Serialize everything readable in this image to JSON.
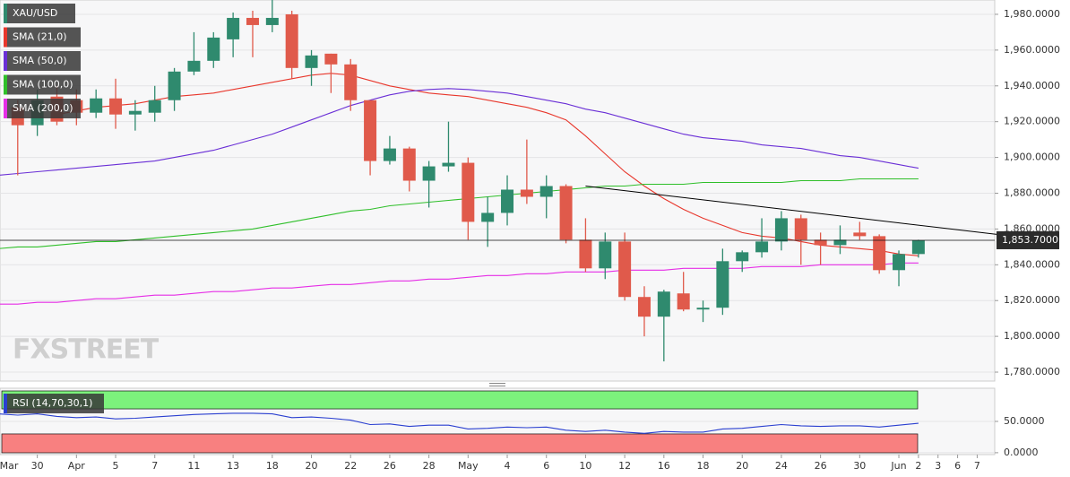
{
  "chart_data": [
    {
      "type": "candlestick",
      "instrument": "XAU/USD",
      "categories": [
        "Mar",
        null,
        "30",
        null,
        "Apr",
        null,
        "5",
        null,
        "7",
        null,
        "11",
        null,
        "13",
        null,
        "18",
        null,
        "20",
        null,
        "22",
        null,
        "26",
        null,
        "28",
        null,
        "May",
        null,
        "4",
        null,
        "6",
        null,
        "10",
        null,
        "12",
        null,
        "16",
        null,
        "18",
        null,
        "20",
        null,
        "24",
        null,
        "26",
        null,
        "30",
        null,
        "Jun",
        "2",
        "3",
        "6",
        "7"
      ],
      "open": [
        null,
        1928,
        1918,
        1934,
        1932,
        1925,
        1933,
        1924,
        1925,
        1932,
        1948,
        1954,
        1966,
        1978,
        1974,
        1980,
        1950,
        1958,
        1952,
        1932,
        1898,
        1905,
        1887,
        1895,
        1897,
        1864,
        1869,
        1882,
        1878,
        1884,
        1854,
        1838,
        1853,
        1822,
        1811,
        1824,
        1815,
        1816,
        1842,
        1847,
        1853,
        1866,
        1854,
        1851,
        1858,
        1856,
        1837,
        1846,
        null,
        null,
        null
      ],
      "high": [
        null,
        1932,
        1938,
        1940,
        1938,
        1938,
        1944,
        1932,
        1940,
        1950,
        1970,
        1970,
        1981,
        1982,
        1990,
        1982,
        1960,
        1958,
        1955,
        1932,
        1912,
        1906,
        1898,
        1920,
        1900,
        1878,
        1890,
        1910,
        1890,
        1885,
        1866,
        1858,
        1858,
        1828,
        1826,
        1836,
        1820,
        1849,
        1848,
        1866,
        1870,
        1868,
        1858,
        1862,
        1864,
        1857,
        1848,
        1854,
        null,
        null,
        null
      ],
      "low": [
        null,
        1890,
        1912,
        1918,
        1918,
        1922,
        1916,
        1915,
        1920,
        1926,
        1946,
        1950,
        1956,
        1956,
        1970,
        1944,
        1940,
        1936,
        1926,
        1890,
        1896,
        1881,
        1872,
        1892,
        1854,
        1850,
        1862,
        1874,
        1866,
        1852,
        1836,
        1832,
        1820,
        1800,
        1786,
        1814,
        1808,
        1812,
        1836,
        1844,
        1848,
        1840,
        1840,
        1846,
        1854,
        1835,
        1828,
        1844,
        null,
        null,
        null
      ],
      "close": [
        null,
        1918,
        1932,
        1920,
        1925,
        1933,
        1924,
        1926,
        1932,
        1948,
        1954,
        1967,
        1978,
        1974,
        1978,
        1950,
        1957,
        1952,
        1932,
        1898,
        1905,
        1887,
        1895,
        1897,
        1864,
        1869,
        1882,
        1878,
        1884,
        1854,
        1838,
        1853,
        1822,
        1811,
        1825,
        1815,
        1816,
        1842,
        1847,
        1853,
        1866,
        1854,
        1851,
        1854,
        1856,
        1837,
        1846,
        1853.7,
        null,
        null,
        null
      ],
      "up_color": "#2f8a6e",
      "down_color": "#e05a4b",
      "series": [
        {
          "name": "SMA (21,0)",
          "color": "#e8372c",
          "values": [
            null,
            null,
            null,
            1924,
            1926,
            1928,
            1929,
            1930,
            1932,
            1934,
            1935,
            1936,
            1938,
            1940,
            1942,
            1944,
            1946,
            1947,
            1946,
            1943,
            1940,
            1938,
            1936,
            1935,
            1934,
            1932,
            1930,
            1928,
            1925,
            1921,
            1912,
            1902,
            1892,
            1884,
            1877,
            1871,
            1866,
            1862,
            1858,
            1856,
            1855,
            1853,
            1851,
            1850,
            1849,
            1848,
            1846,
            1845,
            null,
            null,
            null
          ]
        },
        {
          "name": "SMA (50,0)",
          "color": "#6a2fd6",
          "values": [
            1890,
            1891,
            1892,
            1893,
            1894,
            1895,
            1896,
            1897,
            1898,
            1900,
            1902,
            1904,
            1907,
            1910,
            1913,
            1917,
            1921,
            1925,
            1929,
            1932,
            1935,
            1937,
            1938,
            1938.5,
            1938,
            1937,
            1936,
            1934,
            1932,
            1930,
            1927,
            1925,
            1922,
            1919,
            1916,
            1913,
            1911,
            1910,
            1909,
            1907,
            1906,
            1905,
            1903,
            1901,
            1900,
            1898,
            1896,
            1894,
            null,
            null,
            null
          ]
        },
        {
          "name": "SMA (100,0)",
          "color": "#2fbf2a",
          "values": [
            1849,
            1850,
            1850,
            1851,
            1852,
            1853,
            1853,
            1854,
            1855,
            1856,
            1857,
            1858,
            1859,
            1860,
            1862,
            1864,
            1866,
            1868,
            1870,
            1871,
            1873,
            1874,
            1875,
            1876,
            1877,
            1878,
            1879,
            1880,
            1881,
            1882,
            1883,
            1884,
            1884,
            1885,
            1885,
            1885,
            1886,
            1886,
            1886,
            1886,
            1886,
            1887,
            1887,
            1887,
            1888,
            1888,
            1888,
            1888,
            null,
            null,
            null
          ]
        },
        {
          "name": "SMA (200,0)",
          "color": "#e62ee6",
          "values": [
            1818,
            1818,
            1819,
            1819,
            1820,
            1821,
            1821,
            1822,
            1823,
            1823,
            1824,
            1825,
            1825,
            1826,
            1827,
            1827,
            1828,
            1829,
            1829,
            1830,
            1831,
            1831,
            1832,
            1832,
            1833,
            1834,
            1834,
            1835,
            1835,
            1836,
            1836,
            1836,
            1837,
            1837,
            1837,
            1838,
            1838,
            1838,
            1838,
            1839,
            1839,
            1839,
            1840,
            1840,
            1840,
            1840,
            1841,
            1841,
            null,
            null,
            null
          ]
        }
      ],
      "trendline": {
        "color": "#000000",
        "start": {
          "index": 30,
          "value": 1884
        },
        "end": {
          "index": 51,
          "value": 1857
        }
      },
      "last_price": {
        "value": 1853.7,
        "label": "1,853.7000"
      },
      "ylim": [
        1775,
        1988
      ],
      "yticks": [
        {
          "value": 1780,
          "label": "1,780.0000"
        },
        {
          "value": 1800,
          "label": "1,800.0000"
        },
        {
          "value": 1820,
          "label": "1,820.0000"
        },
        {
          "value": 1840,
          "label": "1,840.0000"
        },
        {
          "value": 1860,
          "label": "1,860.0000"
        },
        {
          "value": 1880,
          "label": "1,880.0000"
        },
        {
          "value": 1900,
          "label": "1,900.0000"
        },
        {
          "value": 1920,
          "label": "1,920.0000"
        },
        {
          "value": 1940,
          "label": "1,940.0000"
        },
        {
          "value": 1960,
          "label": "1,960.0000"
        },
        {
          "value": 1980,
          "label": "1,980.0000"
        }
      ],
      "grid": true,
      "watermark": "FXSTREET"
    },
    {
      "type": "line",
      "series": [
        {
          "name": "RSI (14,70,30,1)",
          "color": "#2a3fd0",
          "values": [
            62,
            60,
            62,
            58,
            56,
            57,
            54,
            55,
            57,
            59,
            61,
            62,
            63,
            63,
            62,
            56,
            57,
            55,
            52,
            45,
            46,
            42,
            44,
            44,
            38,
            39,
            41,
            40,
            41,
            36,
            34,
            36,
            33,
            31,
            34,
            33,
            33,
            38,
            39,
            42,
            45,
            43,
            42,
            43,
            43,
            41,
            44,
            47,
            null,
            null,
            null
          ]
        }
      ],
      "bands": {
        "upper": 70,
        "lower": 30,
        "upper_color": "#7cf27c",
        "lower_color": "#f88080"
      },
      "ylim": [
        -3,
        103
      ],
      "yticks": [
        {
          "value": 0,
          "label": "0.0000"
        },
        {
          "value": 50,
          "label": "50.0000"
        }
      ],
      "grid": true
    }
  ]
}
